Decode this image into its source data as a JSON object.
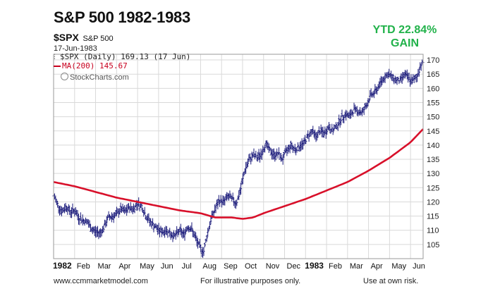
{
  "header": {
    "title": "S&P 500 1982-1983",
    "symbol": "$SPX",
    "symbol_name": "S&P 500",
    "date": "17-Jun-1983",
    "ytd_line1": "YTD 22.84%",
    "ytd_line2": "GAIN"
  },
  "legend": {
    "price_label": "$SPX (Daily) 169.13 (17 Jun)",
    "ma_label": "MA(200) 145.67",
    "brand": "StockCharts.com"
  },
  "footer": {
    "left": "www.ccmmarketmodel.com",
    "center": "For illustrative purposes only.",
    "right": "Use at own risk."
  },
  "colors": {
    "price_bars": "#1a1a7a",
    "moving_average": "#d8102a",
    "ytd_text": "#21b24a",
    "gridlines": "#d9d9d9"
  },
  "chart_data": {
    "type": "line",
    "title": "S&P 500 1982-1983",
    "grid": true,
    "y_axis_side": "right",
    "ylim": [
      100,
      172
    ],
    "yticks": [
      105,
      110,
      115,
      120,
      125,
      130,
      135,
      140,
      145,
      150,
      155,
      160,
      165,
      170
    ],
    "xlim": [
      0,
      17.6
    ],
    "xticks": [
      {
        "label": "1982",
        "x": 0,
        "bold": true
      },
      {
        "label": "Feb",
        "x": 1
      },
      {
        "label": "Mar",
        "x": 2
      },
      {
        "label": "Apr",
        "x": 3
      },
      {
        "label": "May",
        "x": 4
      },
      {
        "label": "Jun",
        "x": 5
      },
      {
        "label": "Jul",
        "x": 6
      },
      {
        "label": "Aug",
        "x": 7
      },
      {
        "label": "Sep",
        "x": 8
      },
      {
        "label": "Oct",
        "x": 9
      },
      {
        "label": "Nov",
        "x": 10
      },
      {
        "label": "Dec",
        "x": 11
      },
      {
        "label": "1983",
        "x": 12,
        "bold": true
      },
      {
        "label": "Feb",
        "x": 13
      },
      {
        "label": "Mar",
        "x": 14
      },
      {
        "label": "Apr",
        "x": 15
      },
      {
        "label": "May",
        "x": 16
      },
      {
        "label": "Jun",
        "x": 17
      }
    ],
    "series": [
      {
        "name": "$SPX (Daily)",
        "style": "ohlc-bars",
        "points": [
          [
            0.0,
            122.5
          ],
          [
            0.2,
            119
          ],
          [
            0.4,
            116.5
          ],
          [
            0.6,
            118.5
          ],
          [
            0.8,
            116.5
          ],
          [
            1.0,
            117
          ],
          [
            1.2,
            114.5
          ],
          [
            1.4,
            113.5
          ],
          [
            1.6,
            113
          ],
          [
            1.8,
            110.5
          ],
          [
            2.0,
            109.5
          ],
          [
            2.2,
            109
          ],
          [
            2.4,
            111
          ],
          [
            2.6,
            114.5
          ],
          [
            2.8,
            115
          ],
          [
            3.0,
            115.5
          ],
          [
            3.2,
            117.5
          ],
          [
            3.4,
            116.5
          ],
          [
            3.6,
            118
          ],
          [
            3.8,
            117.5
          ],
          [
            4.0,
            119.5
          ],
          [
            4.2,
            118.5
          ],
          [
            4.4,
            115
          ],
          [
            4.6,
            113
          ],
          [
            4.8,
            111.5
          ],
          [
            5.0,
            110
          ],
          [
            5.2,
            109.5
          ],
          [
            5.4,
            110
          ],
          [
            5.6,
            108.5
          ],
          [
            5.8,
            108
          ],
          [
            6.0,
            110
          ],
          [
            6.2,
            108.5
          ],
          [
            6.4,
            111.5
          ],
          [
            6.6,
            110
          ],
          [
            6.8,
            106.5
          ],
          [
            7.0,
            103.5
          ],
          [
            7.15,
            102.5
          ],
          [
            7.3,
            108
          ],
          [
            7.5,
            114
          ],
          [
            7.7,
            117.5
          ],
          [
            7.9,
            120.5
          ],
          [
            8.1,
            120
          ],
          [
            8.3,
            122
          ],
          [
            8.5,
            121
          ],
          [
            8.7,
            119.5
          ],
          [
            8.9,
            124
          ],
          [
            9.1,
            131
          ],
          [
            9.3,
            134.5
          ],
          [
            9.5,
            136.5
          ],
          [
            9.7,
            135.5
          ],
          [
            9.9,
            137
          ],
          [
            10.1,
            140.5
          ],
          [
            10.3,
            138
          ],
          [
            10.5,
            136.5
          ],
          [
            10.7,
            137
          ],
          [
            10.9,
            135
          ],
          [
            11.1,
            138
          ],
          [
            11.3,
            140
          ],
          [
            11.5,
            138.5
          ],
          [
            11.7,
            139.5
          ],
          [
            11.9,
            140.5
          ],
          [
            12.1,
            143
          ],
          [
            12.3,
            145
          ],
          [
            12.5,
            143
          ],
          [
            12.7,
            145
          ],
          [
            12.9,
            144
          ],
          [
            13.1,
            146.5
          ],
          [
            13.3,
            145
          ],
          [
            13.5,
            147
          ],
          [
            13.7,
            149.5
          ],
          [
            13.9,
            151
          ],
          [
            14.1,
            150
          ],
          [
            14.3,
            152.5
          ],
          [
            14.5,
            152
          ],
          [
            14.7,
            151.5
          ],
          [
            14.9,
            154
          ],
          [
            15.1,
            157.5
          ],
          [
            15.3,
            158.5
          ],
          [
            15.5,
            161
          ],
          [
            15.7,
            163.5
          ],
          [
            15.9,
            165
          ],
          [
            16.1,
            164
          ],
          [
            16.3,
            163
          ],
          [
            16.5,
            162.5
          ],
          [
            16.7,
            165
          ],
          [
            16.9,
            163.5
          ],
          [
            17.1,
            162.5
          ],
          [
            17.3,
            164
          ],
          [
            17.5,
            168.5
          ],
          [
            17.6,
            169.13
          ]
        ]
      },
      {
        "name": "MA(200)",
        "style": "line",
        "points": [
          [
            0,
            127
          ],
          [
            1,
            125.5
          ],
          [
            2,
            123.5
          ],
          [
            3,
            121.5
          ],
          [
            4,
            120
          ],
          [
            5,
            118.5
          ],
          [
            6,
            117
          ],
          [
            7,
            116
          ],
          [
            7.7,
            114.5
          ],
          [
            8.5,
            114.5
          ],
          [
            9.0,
            114
          ],
          [
            9.5,
            114.5
          ],
          [
            10,
            116
          ],
          [
            11,
            118.5
          ],
          [
            12,
            121
          ],
          [
            13,
            124
          ],
          [
            14,
            127
          ],
          [
            15,
            131
          ],
          [
            16,
            135.5
          ],
          [
            17,
            141
          ],
          [
            17.6,
            145.67
          ]
        ]
      }
    ]
  }
}
